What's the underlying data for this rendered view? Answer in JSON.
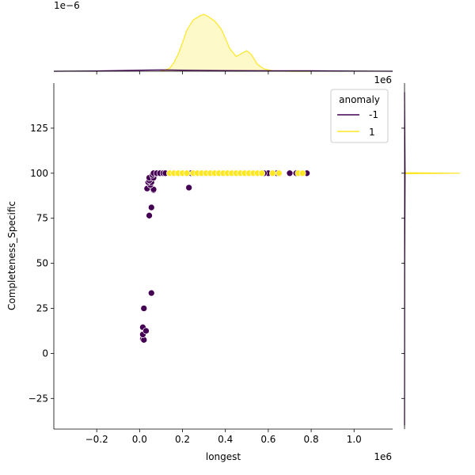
{
  "chart_data": {
    "type": "scatter",
    "xlabel": "longest",
    "ylabel": "Completeness_Specific",
    "x_offset_label": "1e6",
    "y_offset_label": "1e6",
    "top_marginal_offset_label": "1e−6",
    "xlim": [
      -0.4,
      1.18
    ],
    "ylim": [
      -42,
      150
    ],
    "x_ticks": [
      -0.2,
      0.0,
      0.2,
      0.4,
      0.6,
      0.8,
      1.0
    ],
    "x_tick_labels": [
      "−0.2",
      "0.0",
      "0.2",
      "0.4",
      "0.6",
      "0.8",
      "1.0"
    ],
    "y_ticks": [
      -25,
      0,
      25,
      50,
      75,
      100,
      125
    ],
    "y_tick_labels": [
      "−25",
      "0",
      "25",
      "50",
      "75",
      "100",
      "125"
    ],
    "legend": {
      "title": "anomaly",
      "placement": "top-right",
      "entries": [
        {
          "label": "-1",
          "color": "#440154"
        },
        {
          "label": "1",
          "color": "#fde725"
        }
      ]
    },
    "grid": false,
    "series": [
      {
        "label": "-1",
        "color": "#440154",
        "points": [
          [
            0.015,
            8
          ],
          [
            0.02,
            7.5
          ],
          [
            0.015,
            10.5
          ],
          [
            0.015,
            14.5
          ],
          [
            0.03,
            12.5
          ],
          [
            0.02,
            25
          ],
          [
            0.055,
            33.5
          ],
          [
            0.045,
            76.5
          ],
          [
            0.055,
            81
          ],
          [
            0.065,
            90.5
          ],
          [
            0.065,
            91
          ],
          [
            0.035,
            91.5
          ],
          [
            0.045,
            94.5
          ],
          [
            0.05,
            93.5
          ],
          [
            0.04,
            95
          ],
          [
            0.055,
            95
          ],
          [
            0.045,
            96
          ],
          [
            0.045,
            97.5
          ],
          [
            0.065,
            97.5
          ],
          [
            0.06,
            99
          ],
          [
            0.065,
            100
          ],
          [
            0.08,
            100
          ],
          [
            0.095,
            100
          ],
          [
            0.11,
            100
          ],
          [
            0.12,
            100
          ],
          [
            0.23,
            92
          ],
          [
            0.24,
            100
          ],
          [
            0.6,
            100
          ],
          [
            0.64,
            100
          ],
          [
            0.73,
            100
          ],
          [
            0.78,
            100
          ],
          [
            0.7,
            100
          ],
          [
            0.58,
            100
          ]
        ]
      },
      {
        "label": "1",
        "color": "#fde725",
        "points": [
          [
            0.14,
            100
          ],
          [
            0.16,
            100
          ],
          [
            0.18,
            100
          ],
          [
            0.2,
            100
          ],
          [
            0.22,
            100
          ],
          [
            0.25,
            100
          ],
          [
            0.27,
            100
          ],
          [
            0.29,
            100
          ],
          [
            0.31,
            100
          ],
          [
            0.33,
            100
          ],
          [
            0.35,
            100
          ],
          [
            0.37,
            100
          ],
          [
            0.39,
            100
          ],
          [
            0.41,
            100
          ],
          [
            0.43,
            100
          ],
          [
            0.45,
            100
          ],
          [
            0.47,
            100
          ],
          [
            0.49,
            100
          ],
          [
            0.51,
            100
          ],
          [
            0.53,
            100
          ],
          [
            0.55,
            100
          ],
          [
            0.57,
            100
          ],
          [
            0.62,
            100
          ],
          [
            0.65,
            100
          ],
          [
            0.74,
            100
          ],
          [
            0.76,
            100
          ]
        ]
      }
    ],
    "top_marginal": {
      "type": "kde",
      "series": [
        {
          "label": "1",
          "color": "#fde725",
          "x": [
            0.1,
            0.14,
            0.16,
            0.18,
            0.2,
            0.22,
            0.25,
            0.28,
            0.3,
            0.32,
            0.35,
            0.38,
            0.4,
            0.42,
            0.45,
            0.47,
            0.5,
            0.52,
            0.55,
            0.58,
            0.62,
            0.7,
            0.8
          ],
          "density": [
            0,
            0.05,
            0.15,
            0.3,
            0.5,
            0.72,
            0.9,
            0.97,
            1.0,
            0.96,
            0.88,
            0.74,
            0.58,
            0.4,
            0.26,
            0.3,
            0.36,
            0.3,
            0.12,
            0.04,
            0.01,
            0,
            0
          ]
        },
        {
          "label": "-1",
          "color": "#440154",
          "x": [
            -0.4,
            -0.2,
            0.0,
            0.1,
            0.2,
            0.4,
            0.6,
            0.8,
            1.0,
            1.18
          ],
          "density": [
            0,
            0.005,
            0.02,
            0.025,
            0.02,
            0.012,
            0.01,
            0.008,
            0.004,
            0
          ]
        }
      ]
    },
    "right_marginal": {
      "type": "kde",
      "series": [
        {
          "label": "1",
          "color": "#fde725",
          "y": [
            99.7,
            100,
            100.3
          ],
          "density": [
            0,
            1,
            0
          ]
        },
        {
          "label": "-1",
          "color": "#440154",
          "y": [
            -40,
            0,
            50,
            100,
            145
          ],
          "density": [
            0,
            0.002,
            0.003,
            0.01,
            0
          ]
        }
      ]
    }
  }
}
